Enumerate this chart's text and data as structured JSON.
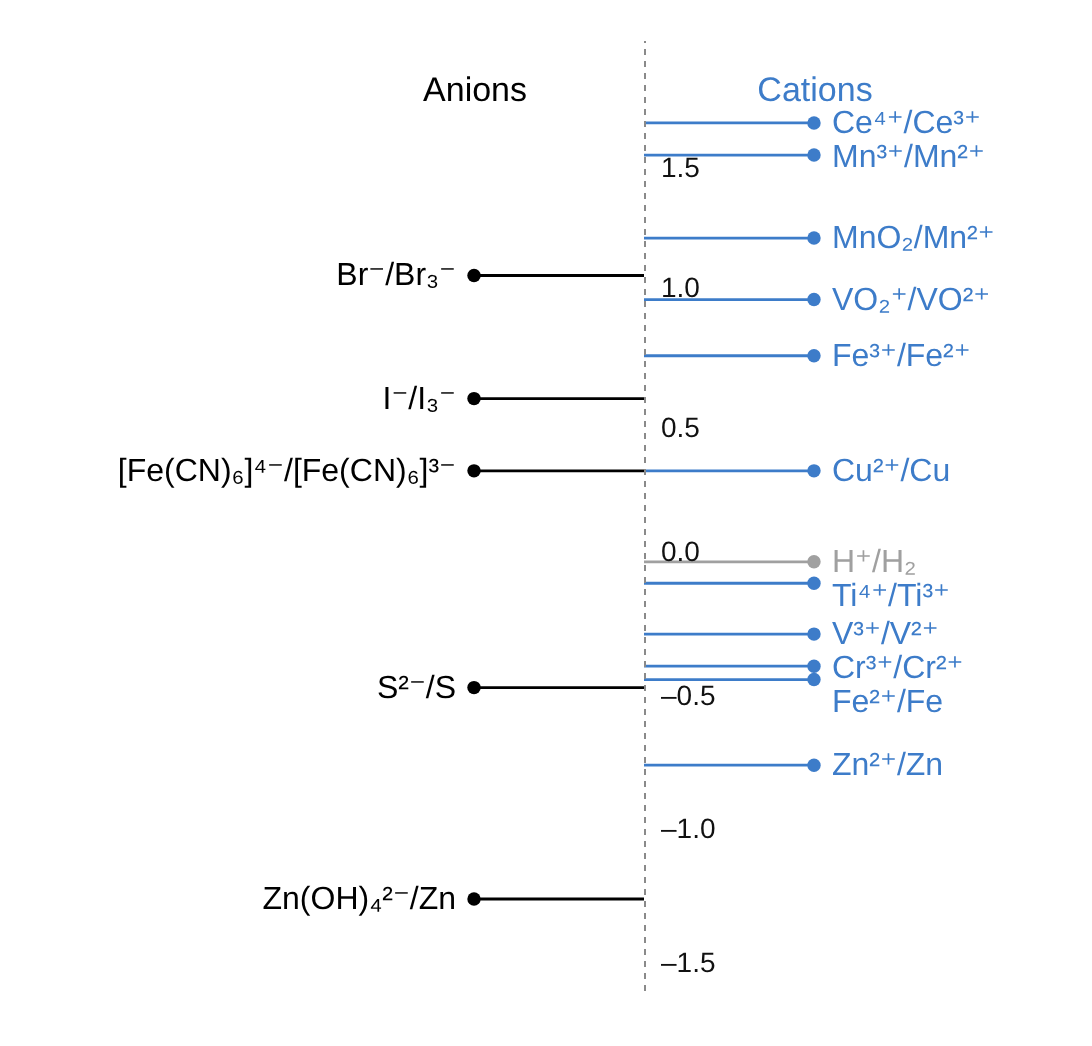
{
  "chart_data": {
    "type": "scatter",
    "marker": "circle",
    "categories": [
      "Anions",
      "Cations"
    ],
    "ylim": [
      -1.6,
      1.95
    ],
    "yticks": [
      {
        "value": 1.5,
        "label": "1.5"
      },
      {
        "value": 1.0,
        "label": "1.0"
      },
      {
        "value": 0.5,
        "label": "0.5"
      },
      {
        "value": 0.0,
        "label": "0.0"
      },
      {
        "value": -0.5,
        "label": "–0.5"
      },
      {
        "value": -1.0,
        "label": "–1.0"
      },
      {
        "value": -1.5,
        "label": "–1.5"
      }
    ],
    "series": [
      {
        "name": "Br⁻/Br₃⁻",
        "color": "#000000",
        "values": [
          1.07,
          null
        ]
      },
      {
        "name": "I⁻/I₃⁻",
        "color": "#000000",
        "values": [
          0.61,
          null
        ]
      },
      {
        "name": "[Fe(CN)₆]⁴⁻/[Fe(CN)₆]³⁻",
        "color": "#000000",
        "values": [
          0.34,
          null
        ]
      },
      {
        "name": "S²⁻/S",
        "color": "#000000",
        "values": [
          -0.47,
          null
        ]
      },
      {
        "name": "Zn(OH)₄²⁻/Zn",
        "color": "#000000",
        "values": [
          -1.26,
          null
        ]
      },
      {
        "name": "Ce⁴⁺/Ce³⁺",
        "color": "#3d7cc9",
        "values": [
          null,
          1.64
        ]
      },
      {
        "name": "Mn³⁺/Mn²⁺",
        "color": "#3d7cc9",
        "values": [
          null,
          1.52
        ]
      },
      {
        "name": "MnO₂/Mn²⁺",
        "color": "#3d7cc9",
        "values": [
          null,
          1.21
        ]
      },
      {
        "name": "VO₂⁺/VO²⁺",
        "color": "#3d7cc9",
        "values": [
          null,
          0.98
        ]
      },
      {
        "name": "Fe³⁺/Fe²⁺",
        "color": "#3d7cc9",
        "values": [
          null,
          0.77
        ]
      },
      {
        "name": "Cu²⁺/Cu",
        "color": "#3d7cc9",
        "values": [
          null,
          0.34
        ]
      },
      {
        "name": "H⁺/H₂",
        "color": "#a0a0a0",
        "values": [
          null,
          0.0
        ]
      },
      {
        "name": "Ti⁴⁺/Ti³⁺",
        "color": "#3d7cc9",
        "values": [
          null,
          -0.08
        ]
      },
      {
        "name": "V³⁺/V²⁺",
        "color": "#3d7cc9",
        "values": [
          null,
          -0.27
        ]
      },
      {
        "name": "Cr³⁺/Cr²⁺",
        "color": "#3d7cc9",
        "values": [
          null,
          -0.39
        ]
      },
      {
        "name": "Fe²⁺/Fe",
        "color": "#3d7cc9",
        "values": [
          null,
          -0.44
        ]
      },
      {
        "name": "Zn²⁺/Zn",
        "color": "#3d7cc9",
        "values": [
          null,
          -0.76
        ]
      }
    ]
  }
}
